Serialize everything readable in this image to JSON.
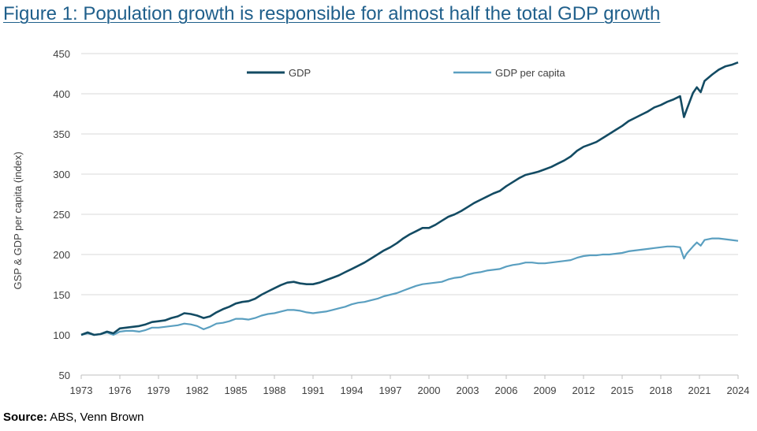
{
  "title": "Figure 1: Population growth is responsible for almost half the total GDP growth",
  "source_label": "Source:",
  "source_text": "ABS, Venn Brown",
  "colors": {
    "gdp": "#134b63",
    "gdp_per_capita": "#5a9fc0",
    "title": "#1f5f8b",
    "grid": "#d9d9d9",
    "axis": "#bfbfbf"
  },
  "chart_data": {
    "type": "line",
    "ylabel": "GSP & GDP per capita (index)",
    "ylim": [
      50,
      450
    ],
    "yticks": [
      50,
      100,
      150,
      200,
      250,
      300,
      350,
      400,
      450
    ],
    "xlim": [
      1973,
      2024
    ],
    "xticks": [
      1973,
      1976,
      1979,
      1982,
      1985,
      1988,
      1991,
      1994,
      1997,
      2000,
      2003,
      2006,
      2009,
      2012,
      2015,
      2018,
      2021,
      2024
    ],
    "grid": "horizontal",
    "legend": "top",
    "series": [
      {
        "name": "GDP",
        "points": [
          [
            1973,
            100
          ],
          [
            1973.5,
            103
          ],
          [
            1974,
            100
          ],
          [
            1974.5,
            101
          ],
          [
            1975,
            104
          ],
          [
            1975.5,
            102
          ],
          [
            1976,
            108
          ],
          [
            1976.5,
            109
          ],
          [
            1977,
            110
          ],
          [
            1977.5,
            111
          ],
          [
            1978,
            113
          ],
          [
            1978.5,
            116
          ],
          [
            1979,
            117
          ],
          [
            1979.5,
            118
          ],
          [
            1980,
            121
          ],
          [
            1980.5,
            123
          ],
          [
            1981,
            127
          ],
          [
            1981.5,
            126
          ],
          [
            1982,
            124
          ],
          [
            1982.5,
            121
          ],
          [
            1983,
            123
          ],
          [
            1983.5,
            128
          ],
          [
            1984,
            132
          ],
          [
            1984.5,
            135
          ],
          [
            1985,
            139
          ],
          [
            1985.5,
            141
          ],
          [
            1986,
            142
          ],
          [
            1986.5,
            145
          ],
          [
            1987,
            150
          ],
          [
            1987.5,
            154
          ],
          [
            1988,
            158
          ],
          [
            1988.5,
            162
          ],
          [
            1989,
            165
          ],
          [
            1989.5,
            166
          ],
          [
            1990,
            164
          ],
          [
            1990.5,
            163
          ],
          [
            1991,
            163
          ],
          [
            1991.5,
            165
          ],
          [
            1992,
            168
          ],
          [
            1992.5,
            171
          ],
          [
            1993,
            174
          ],
          [
            1993.5,
            178
          ],
          [
            1994,
            182
          ],
          [
            1994.5,
            186
          ],
          [
            1995,
            190
          ],
          [
            1995.5,
            195
          ],
          [
            1996,
            200
          ],
          [
            1996.5,
            205
          ],
          [
            1997,
            209
          ],
          [
            1997.5,
            214
          ],
          [
            1998,
            220
          ],
          [
            1998.5,
            225
          ],
          [
            1999,
            229
          ],
          [
            1999.5,
            233
          ],
          [
            2000,
            233
          ],
          [
            2000.5,
            237
          ],
          [
            2001,
            242
          ],
          [
            2001.5,
            247
          ],
          [
            2002,
            250
          ],
          [
            2002.5,
            254
          ],
          [
            2003,
            259
          ],
          [
            2003.5,
            264
          ],
          [
            2004,
            268
          ],
          [
            2004.5,
            272
          ],
          [
            2005,
            276
          ],
          [
            2005.5,
            279
          ],
          [
            2006,
            285
          ],
          [
            2006.5,
            290
          ],
          [
            2007,
            295
          ],
          [
            2007.5,
            299
          ],
          [
            2008,
            301
          ],
          [
            2008.5,
            303
          ],
          [
            2009,
            306
          ],
          [
            2009.5,
            309
          ],
          [
            2010,
            313
          ],
          [
            2010.5,
            317
          ],
          [
            2011,
            322
          ],
          [
            2011.5,
            329
          ],
          [
            2012,
            334
          ],
          [
            2012.5,
            337
          ],
          [
            2013,
            340
          ],
          [
            2013.5,
            345
          ],
          [
            2014,
            350
          ],
          [
            2014.5,
            355
          ],
          [
            2015,
            360
          ],
          [
            2015.5,
            366
          ],
          [
            2016,
            370
          ],
          [
            2016.5,
            374
          ],
          [
            2017,
            378
          ],
          [
            2017.5,
            383
          ],
          [
            2018,
            386
          ],
          [
            2018.5,
            390
          ],
          [
            2019,
            393
          ],
          [
            2019.5,
            397
          ],
          [
            2019.8,
            371
          ],
          [
            2020,
            380
          ],
          [
            2020.5,
            401
          ],
          [
            2020.8,
            408
          ],
          [
            2021.1,
            402
          ],
          [
            2021.4,
            416
          ],
          [
            2022,
            424
          ],
          [
            2022.5,
            430
          ],
          [
            2023,
            434
          ],
          [
            2023.5,
            436
          ],
          [
            2024,
            439
          ]
        ]
      },
      {
        "name": "GDP per capita",
        "points": [
          [
            1973,
            100
          ],
          [
            1973.5,
            102
          ],
          [
            1974,
            100
          ],
          [
            1974.5,
            101
          ],
          [
            1975,
            103
          ],
          [
            1975.5,
            100
          ],
          [
            1976,
            104
          ],
          [
            1976.5,
            105
          ],
          [
            1977,
            105
          ],
          [
            1977.5,
            104
          ],
          [
            1978,
            106
          ],
          [
            1978.5,
            109
          ],
          [
            1979,
            109
          ],
          [
            1979.5,
            110
          ],
          [
            1980,
            111
          ],
          [
            1980.5,
            112
          ],
          [
            1981,
            114
          ],
          [
            1981.5,
            113
          ],
          [
            1982,
            111
          ],
          [
            1982.5,
            107
          ],
          [
            1983,
            110
          ],
          [
            1983.5,
            114
          ],
          [
            1984,
            115
          ],
          [
            1984.5,
            117
          ],
          [
            1985,
            120
          ],
          [
            1985.5,
            120
          ],
          [
            1986,
            119
          ],
          [
            1986.5,
            121
          ],
          [
            1987,
            124
          ],
          [
            1987.5,
            126
          ],
          [
            1988,
            127
          ],
          [
            1988.5,
            129
          ],
          [
            1989,
            131
          ],
          [
            1989.5,
            131
          ],
          [
            1990,
            130
          ],
          [
            1990.5,
            128
          ],
          [
            1991,
            127
          ],
          [
            1991.5,
            128
          ],
          [
            1992,
            129
          ],
          [
            1992.5,
            131
          ],
          [
            1993,
            133
          ],
          [
            1993.5,
            135
          ],
          [
            1994,
            138
          ],
          [
            1994.5,
            140
          ],
          [
            1995,
            141
          ],
          [
            1995.5,
            143
          ],
          [
            1996,
            145
          ],
          [
            1996.5,
            148
          ],
          [
            1997,
            150
          ],
          [
            1997.5,
            152
          ],
          [
            1998,
            155
          ],
          [
            1998.5,
            158
          ],
          [
            1999,
            161
          ],
          [
            1999.5,
            163
          ],
          [
            2000,
            164
          ],
          [
            2000.5,
            165
          ],
          [
            2001,
            166
          ],
          [
            2001.5,
            169
          ],
          [
            2002,
            171
          ],
          [
            2002.5,
            172
          ],
          [
            2003,
            175
          ],
          [
            2003.5,
            177
          ],
          [
            2004,
            178
          ],
          [
            2004.5,
            180
          ],
          [
            2005,
            181
          ],
          [
            2005.5,
            182
          ],
          [
            2006,
            185
          ],
          [
            2006.5,
            187
          ],
          [
            2007,
            188
          ],
          [
            2007.5,
            190
          ],
          [
            2008,
            190
          ],
          [
            2008.5,
            189
          ],
          [
            2009,
            189
          ],
          [
            2009.5,
            190
          ],
          [
            2010,
            191
          ],
          [
            2010.5,
            192
          ],
          [
            2011,
            193
          ],
          [
            2011.5,
            196
          ],
          [
            2012,
            198
          ],
          [
            2012.5,
            199
          ],
          [
            2013,
            199
          ],
          [
            2013.5,
            200
          ],
          [
            2014,
            200
          ],
          [
            2014.5,
            201
          ],
          [
            2015,
            202
          ],
          [
            2015.5,
            204
          ],
          [
            2016,
            205
          ],
          [
            2016.5,
            206
          ],
          [
            2017,
            207
          ],
          [
            2017.5,
            208
          ],
          [
            2018,
            209
          ],
          [
            2018.5,
            210
          ],
          [
            2019,
            210
          ],
          [
            2019.5,
            209
          ],
          [
            2019.8,
            195
          ],
          [
            2020,
            201
          ],
          [
            2020.5,
            210
          ],
          [
            2020.8,
            215
          ],
          [
            2021.1,
            211
          ],
          [
            2021.4,
            218
          ],
          [
            2022,
            220
          ],
          [
            2022.5,
            220
          ],
          [
            2023,
            219
          ],
          [
            2023.5,
            218
          ],
          [
            2024,
            217
          ]
        ]
      }
    ]
  }
}
